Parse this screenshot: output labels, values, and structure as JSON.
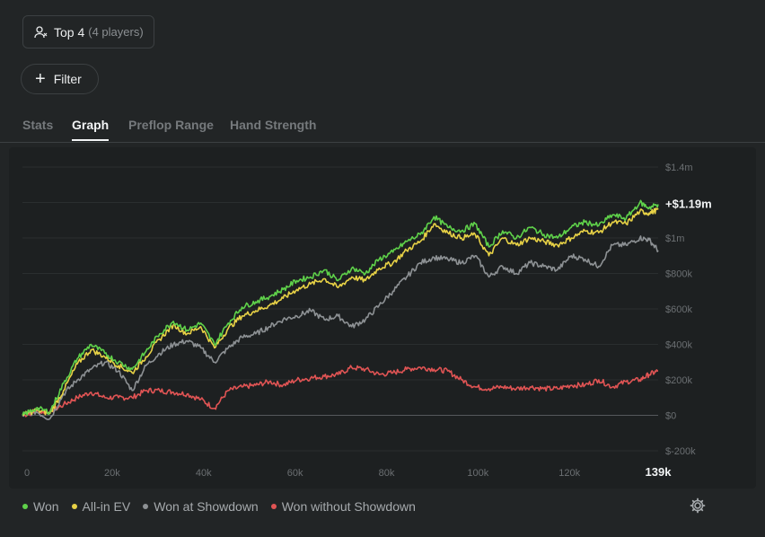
{
  "header": {
    "player_label": "Top 4",
    "player_count": "(4 players)",
    "filter_label": "Filter"
  },
  "tabs": [
    {
      "label": "Stats",
      "active": false
    },
    {
      "label": "Graph",
      "active": true
    },
    {
      "label": "Preflop Range",
      "active": false
    },
    {
      "label": "Hand Strength",
      "active": false
    }
  ],
  "chart_data": {
    "type": "line",
    "x_ticks": [
      "0",
      "20k",
      "40k",
      "60k",
      "80k",
      "100k",
      "120k"
    ],
    "x_end_label": "139k",
    "y_ticks": [
      "$1.4m",
      "$1m",
      "$800k",
      "$600k",
      "$400k",
      "$200k",
      "$0",
      "$-200k"
    ],
    "xlim": [
      0,
      139000
    ],
    "ylim": [
      -200000,
      1400000
    ],
    "final_label": "+$1.19m",
    "series": [
      {
        "name": "Won",
        "color": "#5fd24a",
        "x": [
          0,
          3000,
          6000,
          9000,
          12000,
          15000,
          18000,
          21000,
          24000,
          27000,
          30000,
          33000,
          36000,
          39000,
          42000,
          45000,
          48000,
          51000,
          54000,
          57000,
          60000,
          63000,
          66000,
          69000,
          72000,
          75000,
          78000,
          81000,
          84000,
          87000,
          90000,
          93000,
          96000,
          99000,
          102000,
          105000,
          108000,
          111000,
          114000,
          117000,
          120000,
          123000,
          126000,
          129000,
          132000,
          135000,
          137000,
          139000
        ],
        "y": [
          0,
          40000,
          20000,
          180000,
          320000,
          400000,
          350000,
          300000,
          260000,
          360000,
          460000,
          530000,
          480000,
          520000,
          400000,
          520000,
          610000,
          640000,
          670000,
          710000,
          760000,
          780000,
          820000,
          760000,
          830000,
          800000,
          880000,
          920000,
          980000,
          1020000,
          1120000,
          1060000,
          1040000,
          1080000,
          950000,
          1040000,
          1000000,
          1060000,
          1020000,
          1000000,
          1060000,
          1090000,
          1070000,
          1130000,
          1110000,
          1200000,
          1170000,
          1190000
        ]
      },
      {
        "name": "All-in EV",
        "color": "#e8d246",
        "x": [
          0,
          3000,
          6000,
          9000,
          12000,
          15000,
          18000,
          21000,
          24000,
          27000,
          30000,
          33000,
          36000,
          39000,
          42000,
          45000,
          48000,
          51000,
          54000,
          57000,
          60000,
          63000,
          66000,
          69000,
          72000,
          75000,
          78000,
          81000,
          84000,
          87000,
          90000,
          93000,
          96000,
          99000,
          102000,
          105000,
          108000,
          111000,
          114000,
          117000,
          120000,
          123000,
          126000,
          129000,
          132000,
          135000,
          137000,
          139000
        ],
        "y": [
          0,
          30000,
          10000,
          140000,
          290000,
          370000,
          330000,
          280000,
          240000,
          330000,
          430000,
          510000,
          460000,
          500000,
          380000,
          490000,
          560000,
          590000,
          620000,
          660000,
          710000,
          740000,
          770000,
          720000,
          780000,
          760000,
          830000,
          860000,
          930000,
          980000,
          1080000,
          1030000,
          1000000,
          1020000,
          900000,
          1000000,
          960000,
          1000000,
          980000,
          960000,
          1000000,
          1040000,
          1030000,
          1090000,
          1080000,
          1150000,
          1140000,
          1160000
        ]
      },
      {
        "name": "Won at Showdown",
        "color": "#8d9194",
        "x": [
          0,
          3000,
          6000,
          9000,
          12000,
          15000,
          18000,
          21000,
          24000,
          27000,
          30000,
          33000,
          36000,
          39000,
          42000,
          45000,
          48000,
          51000,
          54000,
          57000,
          60000,
          63000,
          66000,
          69000,
          72000,
          75000,
          78000,
          81000,
          84000,
          87000,
          90000,
          93000,
          96000,
          99000,
          102000,
          105000,
          108000,
          111000,
          114000,
          117000,
          120000,
          123000,
          126000,
          129000,
          132000,
          135000,
          137000,
          139000
        ],
        "y": [
          0,
          20000,
          -20000,
          120000,
          200000,
          260000,
          300000,
          250000,
          140000,
          280000,
          350000,
          400000,
          420000,
          380000,
          300000,
          380000,
          440000,
          460000,
          500000,
          540000,
          560000,
          590000,
          540000,
          560000,
          500000,
          540000,
          620000,
          700000,
          780000,
          860000,
          890000,
          880000,
          860000,
          900000,
          780000,
          840000,
          800000,
          860000,
          840000,
          820000,
          900000,
          880000,
          840000,
          960000,
          960000,
          1000000,
          990000,
          930000
        ]
      },
      {
        "name": "Won without Showdown",
        "color": "#e05454",
        "x": [
          0,
          3000,
          6000,
          9000,
          12000,
          15000,
          18000,
          21000,
          24000,
          27000,
          30000,
          33000,
          36000,
          39000,
          42000,
          45000,
          48000,
          51000,
          54000,
          57000,
          60000,
          63000,
          66000,
          69000,
          72000,
          75000,
          78000,
          81000,
          84000,
          87000,
          90000,
          93000,
          96000,
          99000,
          102000,
          105000,
          108000,
          111000,
          114000,
          117000,
          120000,
          123000,
          126000,
          129000,
          132000,
          135000,
          137000,
          139000
        ],
        "y": [
          0,
          20000,
          20000,
          60000,
          100000,
          130000,
          100000,
          100000,
          100000,
          140000,
          140000,
          130000,
          120000,
          90000,
          40000,
          140000,
          160000,
          170000,
          190000,
          170000,
          200000,
          210000,
          220000,
          230000,
          270000,
          260000,
          230000,
          240000,
          260000,
          270000,
          260000,
          250000,
          200000,
          160000,
          150000,
          160000,
          150000,
          160000,
          150000,
          150000,
          170000,
          170000,
          200000,
          160000,
          190000,
          200000,
          230000,
          250000
        ]
      }
    ]
  },
  "legend": [
    {
      "label": "Won",
      "color": "#5fd24a"
    },
    {
      "label": "All-in EV",
      "color": "#e8d246"
    },
    {
      "label": "Won at Showdown",
      "color": "#8d9194"
    },
    {
      "label": "Won without Showdown",
      "color": "#e05454"
    }
  ],
  "icons": {
    "player": "users-icon",
    "filter": "plus-icon",
    "settings": "gear-icon"
  }
}
